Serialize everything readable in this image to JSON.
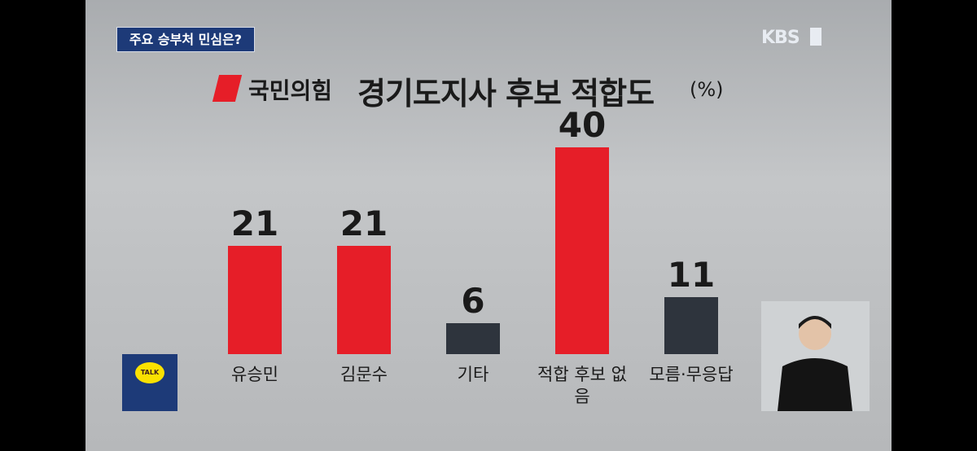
{
  "header": {
    "tag": "주요 승부처 민심은?",
    "logo": "KBS"
  },
  "kakao": "TALK",
  "chart_data": {
    "type": "bar",
    "party": "국민의힘",
    "title": "경기도지사 후보 적합도",
    "unit": "(%)",
    "categories": [
      "유승민",
      "김문수",
      "기타",
      "적합 후보 없음",
      "모름·무응답"
    ],
    "values": [
      21,
      21,
      6,
      40,
      11
    ],
    "colors": [
      "#e61e28",
      "#e61e28",
      "#2e343d",
      "#e61e28",
      "#2e343d"
    ]
  }
}
